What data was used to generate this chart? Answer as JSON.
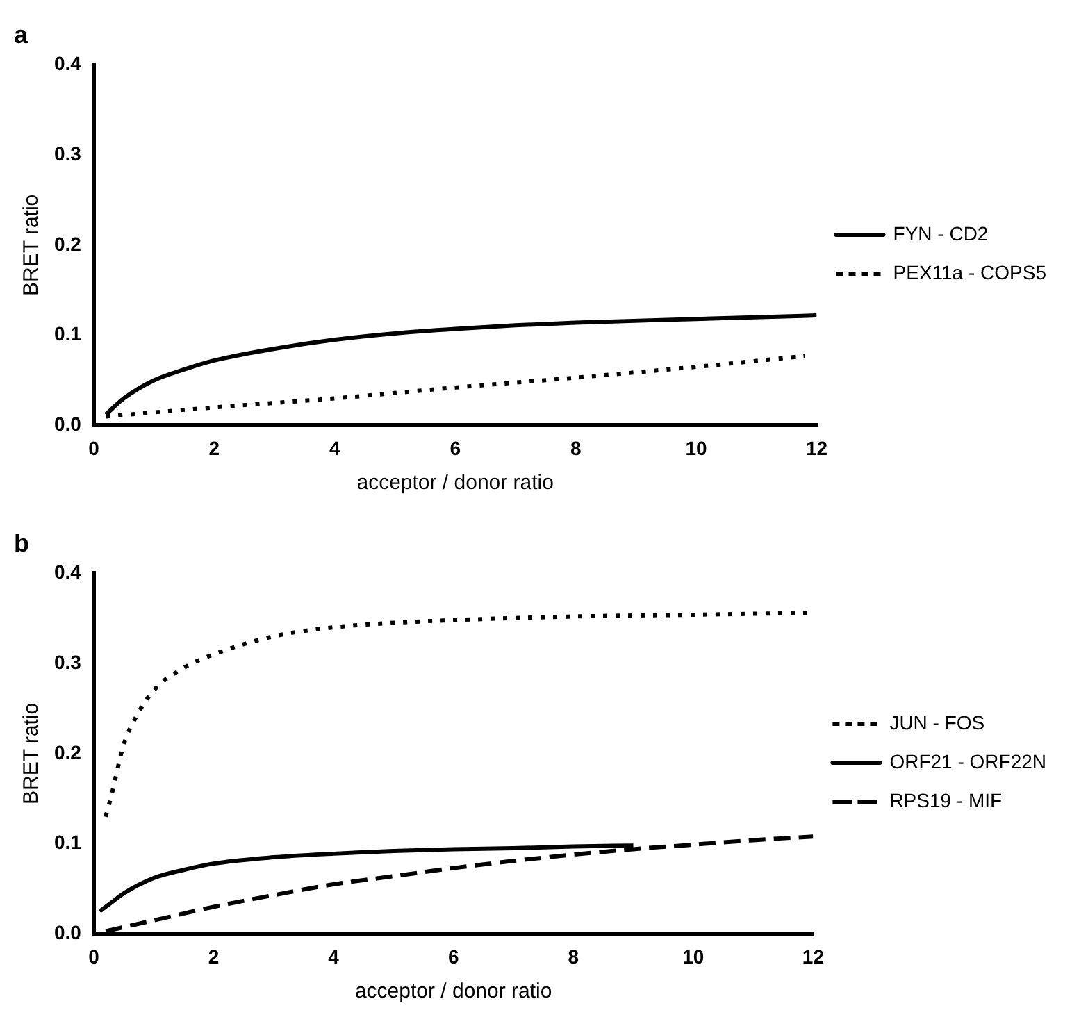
{
  "chart_data": [
    {
      "type": "line",
      "title": "a",
      "xlabel": "acceptor / donor ratio",
      "ylabel": "BRET ratio",
      "xlim": [
        0,
        12
      ],
      "xticks": [
        0,
        2,
        4,
        6,
        8,
        10,
        12
      ],
      "ylim": [
        0,
        0.4
      ],
      "yticks": [
        {
          "value": 0,
          "label": "0.0"
        },
        0.1,
        0.2,
        0.3,
        0.4
      ],
      "grid": false,
      "legend": "right",
      "marker": "none",
      "series": [
        {
          "name": "FYN - CD2",
          "color": "#000000",
          "line_style": "solid",
          "x": [
            0.2,
            0.5,
            1,
            1.5,
            2,
            3,
            4,
            5,
            6,
            7,
            8,
            10,
            12
          ],
          "values": [
            0.012,
            0.03,
            0.05,
            0.062,
            0.072,
            0.085,
            0.095,
            0.102,
            0.107,
            0.111,
            0.114,
            0.118,
            0.122
          ]
        },
        {
          "name": "PEX11a - COPS5",
          "color": "#000000",
          "line_style": "dotted",
          "x": [
            0.2,
            2,
            4,
            6,
            8,
            10,
            11.8
          ],
          "values": [
            0.01,
            0.02,
            0.03,
            0.042,
            0.053,
            0.065,
            0.077
          ]
        }
      ]
    },
    {
      "type": "line",
      "title": "b",
      "xlabel": "acceptor / donor ratio",
      "ylabel": "BRET ratio",
      "xlim": [
        0,
        12
      ],
      "xticks": [
        0,
        2,
        4,
        6,
        8,
        10,
        12
      ],
      "ylim": [
        0,
        0.4
      ],
      "yticks": [
        {
          "value": 0,
          "label": "0.0"
        },
        0.1,
        0.2,
        0.3,
        0.4
      ],
      "grid": false,
      "legend": "right",
      "marker": "none",
      "series": [
        {
          "name": "JUN - FOS",
          "color": "#000000",
          "line_style": "dotted",
          "x": [
            0.2,
            0.3,
            0.5,
            0.7,
            1,
            1.5,
            2,
            3,
            4,
            5,
            6,
            8,
            10,
            12
          ],
          "values": [
            0.13,
            0.155,
            0.21,
            0.24,
            0.27,
            0.295,
            0.31,
            0.33,
            0.34,
            0.345,
            0.348,
            0.352,
            0.354,
            0.356
          ]
        },
        {
          "name": "ORF21 - ORF22N",
          "color": "#000000",
          "line_style": "solid",
          "x": [
            0.1,
            0.3,
            0.5,
            1,
            1.5,
            2,
            3,
            4,
            5,
            6,
            7,
            8,
            9
          ],
          "values": [
            0.025,
            0.035,
            0.045,
            0.062,
            0.071,
            0.078,
            0.085,
            0.089,
            0.092,
            0.094,
            0.095,
            0.097,
            0.098
          ]
        },
        {
          "name": "RPS19 - MIF",
          "color": "#000000",
          "line_style": "dashed",
          "x": [
            0.2,
            1,
            2,
            3,
            4,
            5,
            6,
            7,
            8,
            9,
            10,
            11,
            12
          ],
          "values": [
            0.003,
            0.015,
            0.03,
            0.043,
            0.055,
            0.064,
            0.073,
            0.081,
            0.088,
            0.094,
            0.099,
            0.104,
            0.108
          ]
        }
      ]
    }
  ]
}
